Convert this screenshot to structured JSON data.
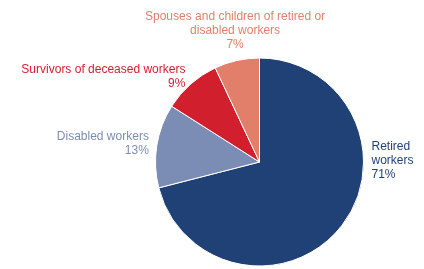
{
  "chart_data": {
    "type": "pie",
    "categories": [
      "Retired workers",
      "Disabled workers",
      "Survivors of deceased workers",
      "Spouses and children of retired or disabled workers"
    ],
    "values": [
      71,
      13,
      9,
      7
    ],
    "value_labels": [
      "71%",
      "13%",
      "9%",
      "7%"
    ],
    "colors": [
      "#1f4176",
      "#7b8db4",
      "#d21f2e",
      "#e27f6b"
    ],
    "data_labels": true
  }
}
